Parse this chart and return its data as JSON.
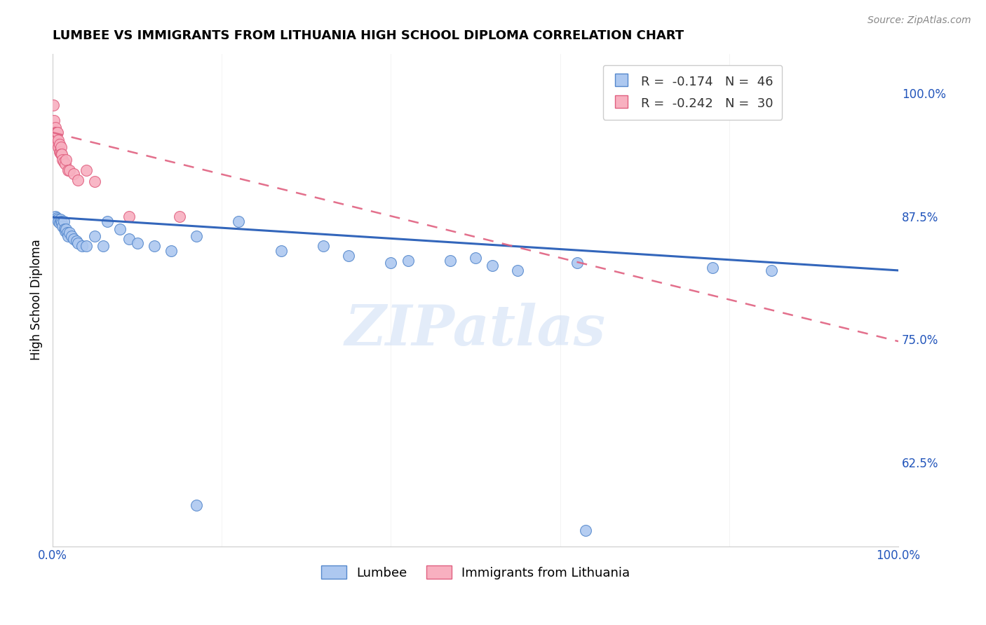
{
  "title": "LUMBEE VS IMMIGRANTS FROM LITHUANIA HIGH SCHOOL DIPLOMA CORRELATION CHART",
  "source": "Source: ZipAtlas.com",
  "ylabel": "High School Diploma",
  "color_lumbee_fill": "#adc8f0",
  "color_lumbee_edge": "#5588cc",
  "color_lumbee_line": "#3366bb",
  "color_lith_fill": "#f8b0c0",
  "color_lith_edge": "#e06080",
  "color_lith_line": "#e06080",
  "watermark": "ZIPatlas",
  "xlim": [
    0.0,
    1.0
  ],
  "ylim": [
    0.54,
    1.04
  ],
  "yticks": [
    0.625,
    0.75,
    0.875,
    1.0
  ],
  "ytick_labels": [
    "62.5%",
    "75.0%",
    "87.5%",
    "100.0%"
  ],
  "xtick_labels": [
    "0.0%",
    "100.0%"
  ],
  "legend_bottom": [
    "Lumbee",
    "Immigrants from Lithuania"
  ],
  "lumbee_x": [
    0.003,
    0.005,
    0.006,
    0.007,
    0.008,
    0.009,
    0.01,
    0.011,
    0.012,
    0.013,
    0.014,
    0.015,
    0.016,
    0.017,
    0.018,
    0.02,
    0.022,
    0.025,
    0.028,
    0.03,
    0.035,
    0.04,
    0.05,
    0.06,
    0.065,
    0.08,
    0.09,
    0.1,
    0.12,
    0.14,
    0.17,
    0.22,
    0.27,
    0.32,
    0.4,
    0.42,
    0.5,
    0.52,
    0.55,
    0.62,
    0.17,
    0.63,
    0.78,
    0.85,
    0.35,
    0.47
  ],
  "lumbee_y": [
    0.875,
    0.873,
    0.872,
    0.87,
    0.868,
    0.872,
    0.87,
    0.868,
    0.865,
    0.87,
    0.862,
    0.86,
    0.862,
    0.858,
    0.855,
    0.858,
    0.855,
    0.852,
    0.85,
    0.848,
    0.845,
    0.845,
    0.855,
    0.845,
    0.87,
    0.862,
    0.852,
    0.848,
    0.845,
    0.84,
    0.855,
    0.87,
    0.84,
    0.845,
    0.828,
    0.83,
    0.833,
    0.825,
    0.82,
    0.828,
    0.582,
    0.556,
    0.823,
    0.82,
    0.835,
    0.83
  ],
  "lith_x": [
    0.001,
    0.002,
    0.003,
    0.003,
    0.004,
    0.004,
    0.005,
    0.005,
    0.006,
    0.006,
    0.007,
    0.007,
    0.008,
    0.008,
    0.009,
    0.01,
    0.01,
    0.011,
    0.012,
    0.013,
    0.015,
    0.016,
    0.018,
    0.02,
    0.025,
    0.03,
    0.04,
    0.05,
    0.09,
    0.15
  ],
  "lith_y": [
    0.988,
    0.972,
    0.965,
    0.96,
    0.96,
    0.952,
    0.96,
    0.952,
    0.96,
    0.948,
    0.952,
    0.945,
    0.948,
    0.94,
    0.94,
    0.945,
    0.938,
    0.938,
    0.932,
    0.93,
    0.928,
    0.932,
    0.922,
    0.922,
    0.918,
    0.912,
    0.922,
    0.91,
    0.875,
    0.875
  ],
  "blue_line_x0": 0.0,
  "blue_line_y0": 0.874,
  "blue_line_x1": 1.0,
  "blue_line_y1": 0.82,
  "pink_line_x0": 0.0,
  "pink_line_y0": 0.96,
  "pink_line_x1": 1.0,
  "pink_line_y1": 0.748
}
